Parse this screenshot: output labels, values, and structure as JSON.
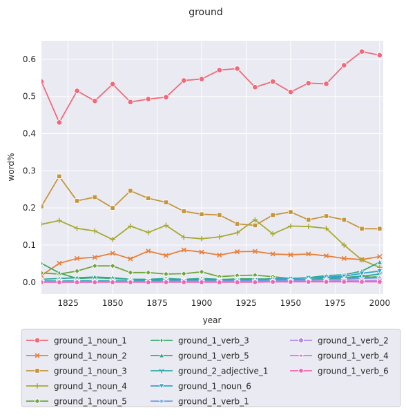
{
  "chart_data": {
    "type": "line",
    "title": "ground",
    "xlabel": "year",
    "ylabel": "word%",
    "xlim": [
      1810,
      2002
    ],
    "ylim": [
      -0.032,
      0.65
    ],
    "xticks": [
      1825,
      1850,
      1875,
      1900,
      1925,
      1950,
      1975,
      2000
    ],
    "yticks": [
      0.0,
      0.1,
      0.2,
      0.3,
      0.4,
      0.5,
      0.6
    ],
    "ytick_labels": [
      "0.0",
      "0.1",
      "0.2",
      "0.3",
      "0.4",
      "0.5",
      "0.6"
    ],
    "grid": true,
    "legend_position": "bottom",
    "x": [
      1810,
      1820,
      1830,
      1840,
      1850,
      1860,
      1870,
      1880,
      1890,
      1900,
      1910,
      1920,
      1930,
      1940,
      1950,
      1960,
      1970,
      1980,
      1990,
      2000
    ],
    "series": [
      {
        "name": "ground_1_noun_1",
        "color": "#f06a7a",
        "marker": "circle",
        "values": [
          0.54,
          0.43,
          0.515,
          0.488,
          0.533,
          0.485,
          0.493,
          0.498,
          0.543,
          0.547,
          0.571,
          0.575,
          0.525,
          0.54,
          0.512,
          0.536,
          0.534,
          0.584,
          0.621,
          0.611
        ]
      },
      {
        "name": "ground_1_noun_2",
        "color": "#e8803a",
        "marker": "x",
        "values": [
          0.018,
          0.051,
          0.064,
          0.067,
          0.078,
          0.063,
          0.084,
          0.072,
          0.087,
          0.081,
          0.073,
          0.082,
          0.083,
          0.076,
          0.074,
          0.076,
          0.071,
          0.064,
          0.061,
          0.069
        ]
      },
      {
        "name": "ground_1_noun_3",
        "color": "#c4963c",
        "marker": "square",
        "values": [
          0.204,
          0.285,
          0.219,
          0.229,
          0.2,
          0.246,
          0.226,
          0.215,
          0.191,
          0.183,
          0.181,
          0.157,
          0.153,
          0.181,
          0.189,
          0.168,
          0.178,
          0.168,
          0.144,
          0.144
        ]
      },
      {
        "name": "ground_1_noun_4",
        "color": "#a8a832",
        "marker": "plus",
        "values": [
          0.156,
          0.166,
          0.145,
          0.138,
          0.115,
          0.151,
          0.134,
          0.153,
          0.121,
          0.117,
          0.122,
          0.133,
          0.168,
          0.13,
          0.151,
          0.15,
          0.145,
          0.1,
          0.06,
          0.04
        ]
      },
      {
        "name": "ground_1_noun_5",
        "color": "#6fa63a",
        "marker": "diamond",
        "values": [
          0.025,
          0.022,
          0.03,
          0.044,
          0.044,
          0.026,
          0.026,
          0.022,
          0.023,
          0.028,
          0.015,
          0.018,
          0.019,
          0.015,
          0.01,
          0.012,
          0.012,
          0.012,
          0.017,
          0.01
        ]
      },
      {
        "name": "ground_1_verb_3",
        "color": "#3aad6a",
        "marker": "thin_diamond",
        "values": [
          0.051,
          0.025,
          0.01,
          0.012,
          0.01,
          0.008,
          0.006,
          0.009,
          0.006,
          0.008,
          0.007,
          0.009,
          0.009,
          0.008,
          0.006,
          0.007,
          0.008,
          0.01,
          0.012,
          0.015
        ]
      },
      {
        "name": "ground_1_verb_5",
        "color": "#30a890",
        "marker": "triangle_up",
        "values": [
          0.008,
          0.01,
          0.012,
          0.014,
          0.012,
          0.008,
          0.008,
          0.01,
          0.008,
          0.01,
          0.008,
          0.006,
          0.007,
          0.01,
          0.01,
          0.012,
          0.018,
          0.02,
          0.03,
          0.054
        ]
      },
      {
        "name": "ground_2_adjective_1",
        "color": "#2fa9a8",
        "marker": "tri_down",
        "values": [
          0.004,
          0.003,
          0.004,
          0.004,
          0.004,
          0.004,
          0.004,
          0.005,
          0.005,
          0.005,
          0.005,
          0.006,
          0.006,
          0.008,
          0.007,
          0.008,
          0.01,
          0.012,
          0.016,
          0.022
        ]
      },
      {
        "name": "ground_1_noun_6",
        "color": "#33a3c8",
        "marker": "triangle_down",
        "values": [
          0.003,
          0.003,
          0.003,
          0.003,
          0.003,
          0.003,
          0.004,
          0.004,
          0.004,
          0.004,
          0.004,
          0.005,
          0.006,
          0.008,
          0.01,
          0.012,
          0.014,
          0.016,
          0.024,
          0.03
        ]
      },
      {
        "name": "ground_1_verb_1",
        "color": "#6a9ee0",
        "marker": "star",
        "values": [
          0.002,
          0.002,
          0.002,
          0.002,
          0.002,
          0.002,
          0.002,
          0.002,
          0.003,
          0.003,
          0.003,
          0.003,
          0.004,
          0.004,
          0.005,
          0.006,
          0.007,
          0.008,
          0.01,
          0.012
        ]
      },
      {
        "name": "ground_1_verb_2",
        "color": "#b08ae8",
        "marker": "hexagon",
        "values": [
          0.001,
          0.001,
          0.001,
          0.001,
          0.001,
          0.001,
          0.001,
          0.002,
          0.002,
          0.002,
          0.002,
          0.002,
          0.002,
          0.002,
          0.003,
          0.003,
          0.003,
          0.004,
          0.004,
          0.005
        ]
      },
      {
        "name": "ground_1_verb_4",
        "color": "#e46ee0",
        "marker": "star_small",
        "values": [
          0.0,
          0.0,
          0.0,
          0.0,
          0.001,
          0.001,
          0.001,
          0.001,
          0.001,
          0.001,
          0.001,
          0.001,
          0.001,
          0.001,
          0.001,
          0.002,
          0.002,
          0.002,
          0.002,
          0.003
        ]
      },
      {
        "name": "ground_1_verb_6",
        "color": "#f064b4",
        "marker": "pentagon",
        "values": [
          0.0,
          0.0,
          0.0,
          0.0,
          0.0,
          0.0,
          0.0,
          0.0,
          0.0,
          0.0,
          0.0,
          0.0,
          0.0,
          0.001,
          0.001,
          0.001,
          0.001,
          0.001,
          0.001,
          0.001
        ]
      }
    ]
  }
}
